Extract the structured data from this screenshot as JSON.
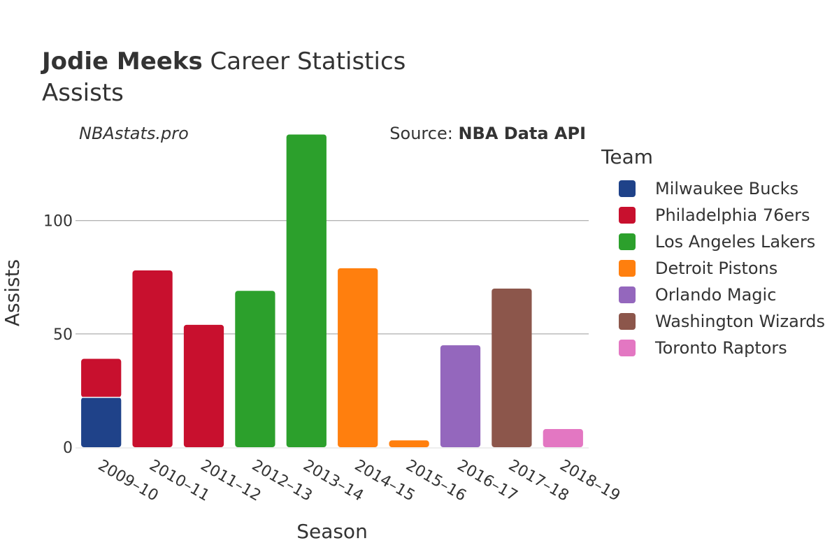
{
  "header": {
    "player": "Jodie Meeks",
    "title_rest": "Career Statistics",
    "stat": "Assists",
    "brand": "NBAstats.pro",
    "source_prefix": "Source: ",
    "source_name": "NBA Data API"
  },
  "legend": {
    "title": "Team",
    "items": [
      {
        "name": "Milwaukee Bucks",
        "color": "#1f4289"
      },
      {
        "name": "Philadelphia 76ers",
        "color": "#c8102e"
      },
      {
        "name": "Los Angeles Lakers",
        "color": "#2ca02c"
      },
      {
        "name": "Detroit Pistons",
        "color": "#ff7f0e"
      },
      {
        "name": "Orlando Magic",
        "color": "#9467bd"
      },
      {
        "name": "Washington Wizards",
        "color": "#8c564b"
      },
      {
        "name": "Toronto Raptors",
        "color": "#e377c2"
      }
    ]
  },
  "chart_data": {
    "type": "bar",
    "stacked": true,
    "title": "Jodie Meeks Career Statistics",
    "subtitle": "Assists",
    "xlabel": "Season",
    "ylabel": "Assists",
    "ylim": [
      0,
      140
    ],
    "yticks": [
      0,
      50,
      100
    ],
    "categories": [
      "2009–10",
      "2010–11",
      "2011–12",
      "2012–13",
      "2013–14",
      "2014–15",
      "2015–16",
      "2016–17",
      "2017–18",
      "2018–19"
    ],
    "series": [
      {
        "name": "Milwaukee Bucks",
        "values": [
          22,
          0,
          0,
          0,
          0,
          0,
          0,
          0,
          0,
          0
        ]
      },
      {
        "name": "Philadelphia 76ers",
        "values": [
          17,
          78,
          54,
          0,
          0,
          0,
          0,
          0,
          0,
          0
        ]
      },
      {
        "name": "Los Angeles Lakers",
        "values": [
          0,
          0,
          0,
          69,
          138,
          0,
          0,
          0,
          0,
          0
        ]
      },
      {
        "name": "Detroit Pistons",
        "values": [
          0,
          0,
          0,
          0,
          0,
          79,
          3,
          0,
          0,
          0
        ]
      },
      {
        "name": "Orlando Magic",
        "values": [
          0,
          0,
          0,
          0,
          0,
          0,
          0,
          45,
          0,
          0
        ]
      },
      {
        "name": "Washington Wizards",
        "values": [
          0,
          0,
          0,
          0,
          0,
          0,
          0,
          0,
          70,
          0
        ]
      },
      {
        "name": "Toronto Raptors",
        "values": [
          0,
          0,
          0,
          0,
          0,
          0,
          0,
          0,
          0,
          8
        ]
      }
    ]
  }
}
